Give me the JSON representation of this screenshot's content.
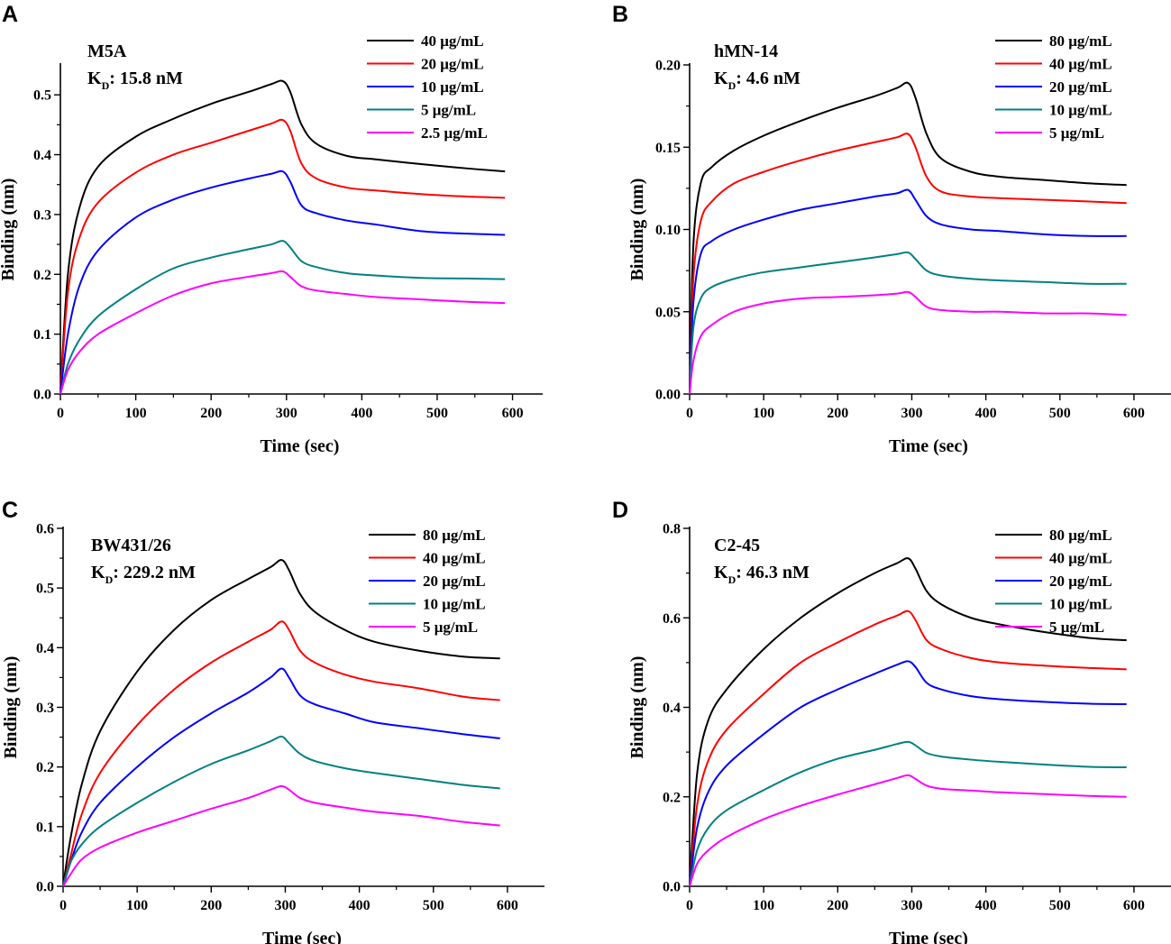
{
  "chart_data": [
    {
      "type": "line",
      "panel_label": "A",
      "name": "M5A",
      "kd_prefix": "K",
      "kd_sub": "D",
      "kd_value": ": 15.8 nM",
      "xlabel": "Time (sec)",
      "ylabel": "Binding (nm)",
      "xlim": [
        0,
        640
      ],
      "ylim": [
        0,
        0.55
      ],
      "xticks": [
        0,
        100,
        200,
        300,
        400,
        500,
        600
      ],
      "yticks": [
        0.0,
        0.1,
        0.2,
        0.3,
        0.4,
        0.5
      ],
      "ytick_labels": [
        "0.0",
        "0.1",
        "0.2",
        "0.3",
        "0.4",
        "0.5"
      ],
      "legend_position": "top-right",
      "series": [
        {
          "name": "40  μg/mL",
          "color": "#000000",
          "x": [
            0,
            10,
            25,
            50,
            100,
            150,
            200,
            250,
            280,
            295,
            305,
            320,
            340,
            380,
            420,
            480,
            540,
            590
          ],
          "values": [
            0,
            0.2,
            0.31,
            0.38,
            0.43,
            0.46,
            0.485,
            0.505,
            0.518,
            0.523,
            0.505,
            0.45,
            0.418,
            0.398,
            0.392,
            0.384,
            0.377,
            0.372
          ]
        },
        {
          "name": "20  μg/mL",
          "color": "#ff0000",
          "x": [
            0,
            10,
            25,
            50,
            100,
            150,
            200,
            250,
            280,
            295,
            305,
            320,
            340,
            380,
            420,
            480,
            540,
            590
          ],
          "values": [
            0,
            0.17,
            0.26,
            0.32,
            0.37,
            0.4,
            0.42,
            0.44,
            0.452,
            0.458,
            0.44,
            0.385,
            0.36,
            0.345,
            0.34,
            0.334,
            0.33,
            0.328
          ]
        },
        {
          "name": "10  μg/mL",
          "color": "#0000ff",
          "x": [
            0,
            10,
            25,
            50,
            100,
            150,
            200,
            250,
            280,
            295,
            305,
            320,
            340,
            380,
            420,
            480,
            540,
            590
          ],
          "values": [
            0,
            0.1,
            0.18,
            0.24,
            0.295,
            0.325,
            0.345,
            0.36,
            0.368,
            0.372,
            0.355,
            0.315,
            0.302,
            0.29,
            0.283,
            0.272,
            0.268,
            0.266
          ]
        },
        {
          "name": "5  μg/mL",
          "color": "#008080",
          "x": [
            0,
            10,
            25,
            50,
            100,
            150,
            200,
            250,
            280,
            295,
            305,
            320,
            340,
            380,
            420,
            480,
            540,
            590
          ],
          "values": [
            0,
            0.05,
            0.09,
            0.13,
            0.175,
            0.21,
            0.228,
            0.242,
            0.25,
            0.256,
            0.245,
            0.222,
            0.212,
            0.202,
            0.198,
            0.194,
            0.193,
            0.192
          ]
        },
        {
          "name": "2.5 μg/mL",
          "color": "#ff00ff",
          "x": [
            0,
            10,
            25,
            50,
            100,
            150,
            200,
            250,
            280,
            295,
            305,
            320,
            340,
            380,
            420,
            480,
            540,
            590
          ],
          "values": [
            0,
            0.04,
            0.07,
            0.1,
            0.135,
            0.165,
            0.185,
            0.196,
            0.202,
            0.205,
            0.196,
            0.18,
            0.173,
            0.167,
            0.162,
            0.158,
            0.154,
            0.152
          ]
        }
      ]
    },
    {
      "type": "line",
      "panel_label": "B",
      "name": "hMN-14",
      "kd_prefix": "K",
      "kd_sub": "D",
      "kd_value": ": 4.6 nM",
      "xlabel": "Time (sec)",
      "ylabel": "Binding (nm)",
      "xlim": [
        0,
        650
      ],
      "ylim": [
        0,
        0.2
      ],
      "xticks": [
        0,
        100,
        200,
        300,
        400,
        500,
        600
      ],
      "yticks": [
        0.0,
        0.05,
        0.1,
        0.15,
        0.2
      ],
      "ytick_labels": [
        "0.00",
        "0.05",
        "0.10",
        "0.15",
        "0.20"
      ],
      "legend_position": "top-right",
      "series": [
        {
          "name": "80  μg/mL",
          "color": "#000000",
          "x": [
            0,
            5,
            15,
            30,
            60,
            100,
            150,
            200,
            250,
            280,
            295,
            305,
            320,
            340,
            380,
            420,
            480,
            540,
            590
          ],
          "values": [
            0,
            0.09,
            0.128,
            0.138,
            0.148,
            0.157,
            0.166,
            0.174,
            0.181,
            0.186,
            0.189,
            0.18,
            0.158,
            0.143,
            0.135,
            0.132,
            0.13,
            0.128,
            0.127
          ]
        },
        {
          "name": "40  μg/mL",
          "color": "#ff0000",
          "x": [
            0,
            5,
            15,
            30,
            60,
            100,
            150,
            200,
            250,
            280,
            295,
            305,
            320,
            340,
            380,
            420,
            480,
            540,
            590
          ],
          "values": [
            0,
            0.07,
            0.105,
            0.117,
            0.128,
            0.135,
            0.142,
            0.148,
            0.153,
            0.156,
            0.158,
            0.15,
            0.132,
            0.123,
            0.12,
            0.119,
            0.118,
            0.117,
            0.116
          ]
        },
        {
          "name": "20  μg/mL",
          "color": "#0000ff",
          "x": [
            0,
            5,
            15,
            30,
            60,
            100,
            150,
            200,
            250,
            280,
            295,
            305,
            320,
            340,
            380,
            420,
            480,
            540,
            590
          ],
          "values": [
            0,
            0.055,
            0.085,
            0.093,
            0.1,
            0.106,
            0.112,
            0.116,
            0.12,
            0.122,
            0.124,
            0.118,
            0.108,
            0.103,
            0.1,
            0.099,
            0.097,
            0.096,
            0.096
          ]
        },
        {
          "name": "10  μg/mL",
          "color": "#008080",
          "x": [
            0,
            5,
            15,
            30,
            60,
            100,
            150,
            200,
            250,
            280,
            295,
            305,
            320,
            340,
            380,
            420,
            480,
            540,
            590
          ],
          "values": [
            0,
            0.04,
            0.058,
            0.065,
            0.07,
            0.074,
            0.077,
            0.08,
            0.083,
            0.085,
            0.086,
            0.082,
            0.075,
            0.072,
            0.07,
            0.069,
            0.068,
            0.067,
            0.067
          ]
        },
        {
          "name": "5  μg/mL",
          "color": "#ff00ff",
          "x": [
            0,
            5,
            15,
            30,
            60,
            100,
            150,
            200,
            250,
            280,
            295,
            305,
            320,
            340,
            380,
            420,
            480,
            540,
            590
          ],
          "values": [
            0,
            0.02,
            0.035,
            0.042,
            0.05,
            0.055,
            0.058,
            0.059,
            0.06,
            0.061,
            0.062,
            0.059,
            0.053,
            0.051,
            0.05,
            0.05,
            0.049,
            0.049,
            0.048
          ]
        }
      ]
    },
    {
      "type": "line",
      "panel_label": "C",
      "name": "BW431/26",
      "kd_prefix": "K",
      "kd_sub": "D",
      "kd_value": ": 229.2 nM",
      "xlabel": "Time (sec)",
      "ylabel": "Binding (nm)",
      "xlim": [
        0,
        650
      ],
      "ylim": [
        0,
        0.6
      ],
      "xticks": [
        0,
        100,
        200,
        300,
        400,
        500,
        600
      ],
      "yticks": [
        0.0,
        0.1,
        0.2,
        0.3,
        0.4,
        0.5,
        0.6
      ],
      "ytick_labels": [
        "0.0",
        "0.1",
        "0.2",
        "0.3",
        "0.4",
        "0.5",
        "0.6"
      ],
      "legend_position": "top-right",
      "series": [
        {
          "name": "80  μg/mL",
          "color": "#000000",
          "x": [
            0,
            10,
            25,
            50,
            100,
            150,
            200,
            250,
            280,
            295,
            305,
            320,
            340,
            380,
            420,
            480,
            540,
            590
          ],
          "values": [
            0,
            0.08,
            0.17,
            0.26,
            0.36,
            0.43,
            0.48,
            0.515,
            0.535,
            0.547,
            0.53,
            0.49,
            0.46,
            0.43,
            0.41,
            0.395,
            0.385,
            0.382
          ]
        },
        {
          "name": "40  μg/mL",
          "color": "#ff0000",
          "x": [
            0,
            10,
            25,
            50,
            100,
            150,
            200,
            250,
            280,
            295,
            305,
            320,
            340,
            380,
            420,
            480,
            540,
            590
          ],
          "values": [
            0,
            0.05,
            0.12,
            0.19,
            0.27,
            0.33,
            0.375,
            0.41,
            0.43,
            0.444,
            0.43,
            0.395,
            0.375,
            0.355,
            0.343,
            0.332,
            0.318,
            0.312
          ]
        },
        {
          "name": "20  μg/mL",
          "color": "#0000ff",
          "x": [
            0,
            10,
            25,
            50,
            100,
            150,
            200,
            250,
            280,
            295,
            305,
            320,
            340,
            380,
            420,
            480,
            540,
            590
          ],
          "values": [
            0,
            0.04,
            0.09,
            0.14,
            0.2,
            0.25,
            0.29,
            0.325,
            0.35,
            0.365,
            0.35,
            0.32,
            0.305,
            0.29,
            0.275,
            0.265,
            0.255,
            0.248
          ]
        },
        {
          "name": "10  μg/mL",
          "color": "#008080",
          "x": [
            0,
            10,
            25,
            50,
            100,
            150,
            200,
            250,
            280,
            295,
            305,
            320,
            340,
            380,
            420,
            480,
            540,
            590
          ],
          "values": [
            0,
            0.04,
            0.07,
            0.1,
            0.14,
            0.175,
            0.205,
            0.228,
            0.243,
            0.251,
            0.24,
            0.222,
            0.21,
            0.198,
            0.19,
            0.18,
            0.17,
            0.164
          ]
        },
        {
          "name": "5  μg/mL",
          "color": "#ff00ff",
          "x": [
            0,
            10,
            25,
            50,
            100,
            150,
            200,
            250,
            280,
            295,
            305,
            320,
            340,
            380,
            420,
            480,
            540,
            590
          ],
          "values": [
            0,
            0.02,
            0.045,
            0.065,
            0.09,
            0.11,
            0.13,
            0.148,
            0.162,
            0.168,
            0.162,
            0.148,
            0.14,
            0.132,
            0.125,
            0.118,
            0.108,
            0.102
          ]
        }
      ]
    },
    {
      "type": "line",
      "panel_label": "D",
      "name": "C2-45",
      "kd_prefix": "K",
      "kd_sub": "D",
      "kd_value": ": 46.3 nM",
      "xlabel": "Time (sec)",
      "ylabel": "Binding (nm)",
      "xlim": [
        0,
        650
      ],
      "ylim": [
        0,
        0.8
      ],
      "xticks": [
        0,
        100,
        200,
        300,
        400,
        500,
        600
      ],
      "yticks": [
        0.0,
        0.2,
        0.4,
        0.6,
        0.8
      ],
      "ytick_labels": [
        "0.0",
        "0.2",
        "0.4",
        "0.6",
        "0.8"
      ],
      "legend_position": "top-right",
      "series": [
        {
          "name": "80  μg/mL",
          "color": "#000000",
          "x": [
            0,
            10,
            25,
            50,
            100,
            150,
            200,
            250,
            280,
            295,
            305,
            320,
            340,
            380,
            420,
            480,
            540,
            590
          ],
          "values": [
            0,
            0.25,
            0.37,
            0.44,
            0.53,
            0.6,
            0.655,
            0.7,
            0.722,
            0.733,
            0.71,
            0.66,
            0.63,
            0.6,
            0.585,
            0.568,
            0.555,
            0.55
          ]
        },
        {
          "name": "40  μg/mL",
          "color": "#ff0000",
          "x": [
            0,
            10,
            25,
            50,
            100,
            150,
            200,
            250,
            280,
            295,
            305,
            320,
            340,
            380,
            420,
            480,
            540,
            590
          ],
          "values": [
            0,
            0.18,
            0.28,
            0.35,
            0.43,
            0.5,
            0.545,
            0.585,
            0.605,
            0.615,
            0.595,
            0.55,
            0.53,
            0.51,
            0.5,
            0.493,
            0.488,
            0.485
          ]
        },
        {
          "name": "20  μg/mL",
          "color": "#0000ff",
          "x": [
            0,
            10,
            25,
            50,
            100,
            150,
            200,
            250,
            280,
            295,
            305,
            320,
            340,
            380,
            420,
            480,
            540,
            590
          ],
          "values": [
            0,
            0.13,
            0.21,
            0.27,
            0.34,
            0.4,
            0.44,
            0.475,
            0.495,
            0.503,
            0.49,
            0.455,
            0.44,
            0.425,
            0.418,
            0.412,
            0.408,
            0.407
          ]
        },
        {
          "name": "10  μg/mL",
          "color": "#008080",
          "x": [
            0,
            10,
            25,
            50,
            100,
            150,
            200,
            250,
            280,
            295,
            305,
            320,
            340,
            380,
            420,
            480,
            540,
            590
          ],
          "values": [
            0,
            0.08,
            0.13,
            0.17,
            0.215,
            0.255,
            0.285,
            0.305,
            0.318,
            0.323,
            0.315,
            0.298,
            0.29,
            0.283,
            0.278,
            0.272,
            0.267,
            0.266
          ]
        },
        {
          "name": "5  μg/mL",
          "color": "#ff00ff",
          "x": [
            0,
            10,
            25,
            50,
            100,
            150,
            200,
            250,
            280,
            295,
            305,
            320,
            340,
            380,
            420,
            480,
            540,
            590
          ],
          "values": [
            0,
            0.05,
            0.08,
            0.11,
            0.15,
            0.18,
            0.205,
            0.228,
            0.242,
            0.248,
            0.24,
            0.225,
            0.218,
            0.214,
            0.21,
            0.206,
            0.202,
            0.2
          ]
        }
      ]
    }
  ]
}
